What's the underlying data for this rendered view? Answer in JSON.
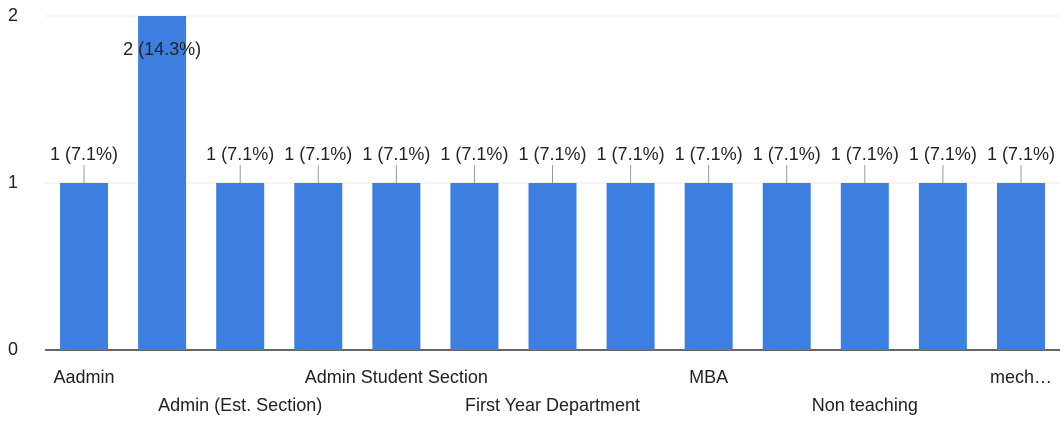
{
  "chart_data": {
    "type": "bar",
    "categories": [
      "Aadmin",
      null,
      "Admin (Est. Section)",
      null,
      "Admin Student Section",
      null,
      "First Year Department",
      null,
      "MBA",
      null,
      "Non teaching",
      null,
      "mech…"
    ],
    "values": [
      1,
      2,
      1,
      1,
      1,
      1,
      1,
      1,
      1,
      1,
      1,
      1,
      1
    ],
    "value_labels": [
      "1 (7.1%)",
      "2 (14.3%)",
      "1 (7.1%)",
      "1 (7.1%)",
      "1 (7.1%)",
      "1 (7.1%)",
      "1 (7.1%)",
      "1 (7.1%)",
      "1 (7.1%)",
      "1 (7.1%)",
      "1 (7.1%)",
      "1 (7.1%)",
      "1 (7.1%)"
    ],
    "color": "#3d7fe0",
    "ylim": [
      0,
      2
    ],
    "yticks": [
      0,
      1,
      2
    ],
    "grid": true
  }
}
